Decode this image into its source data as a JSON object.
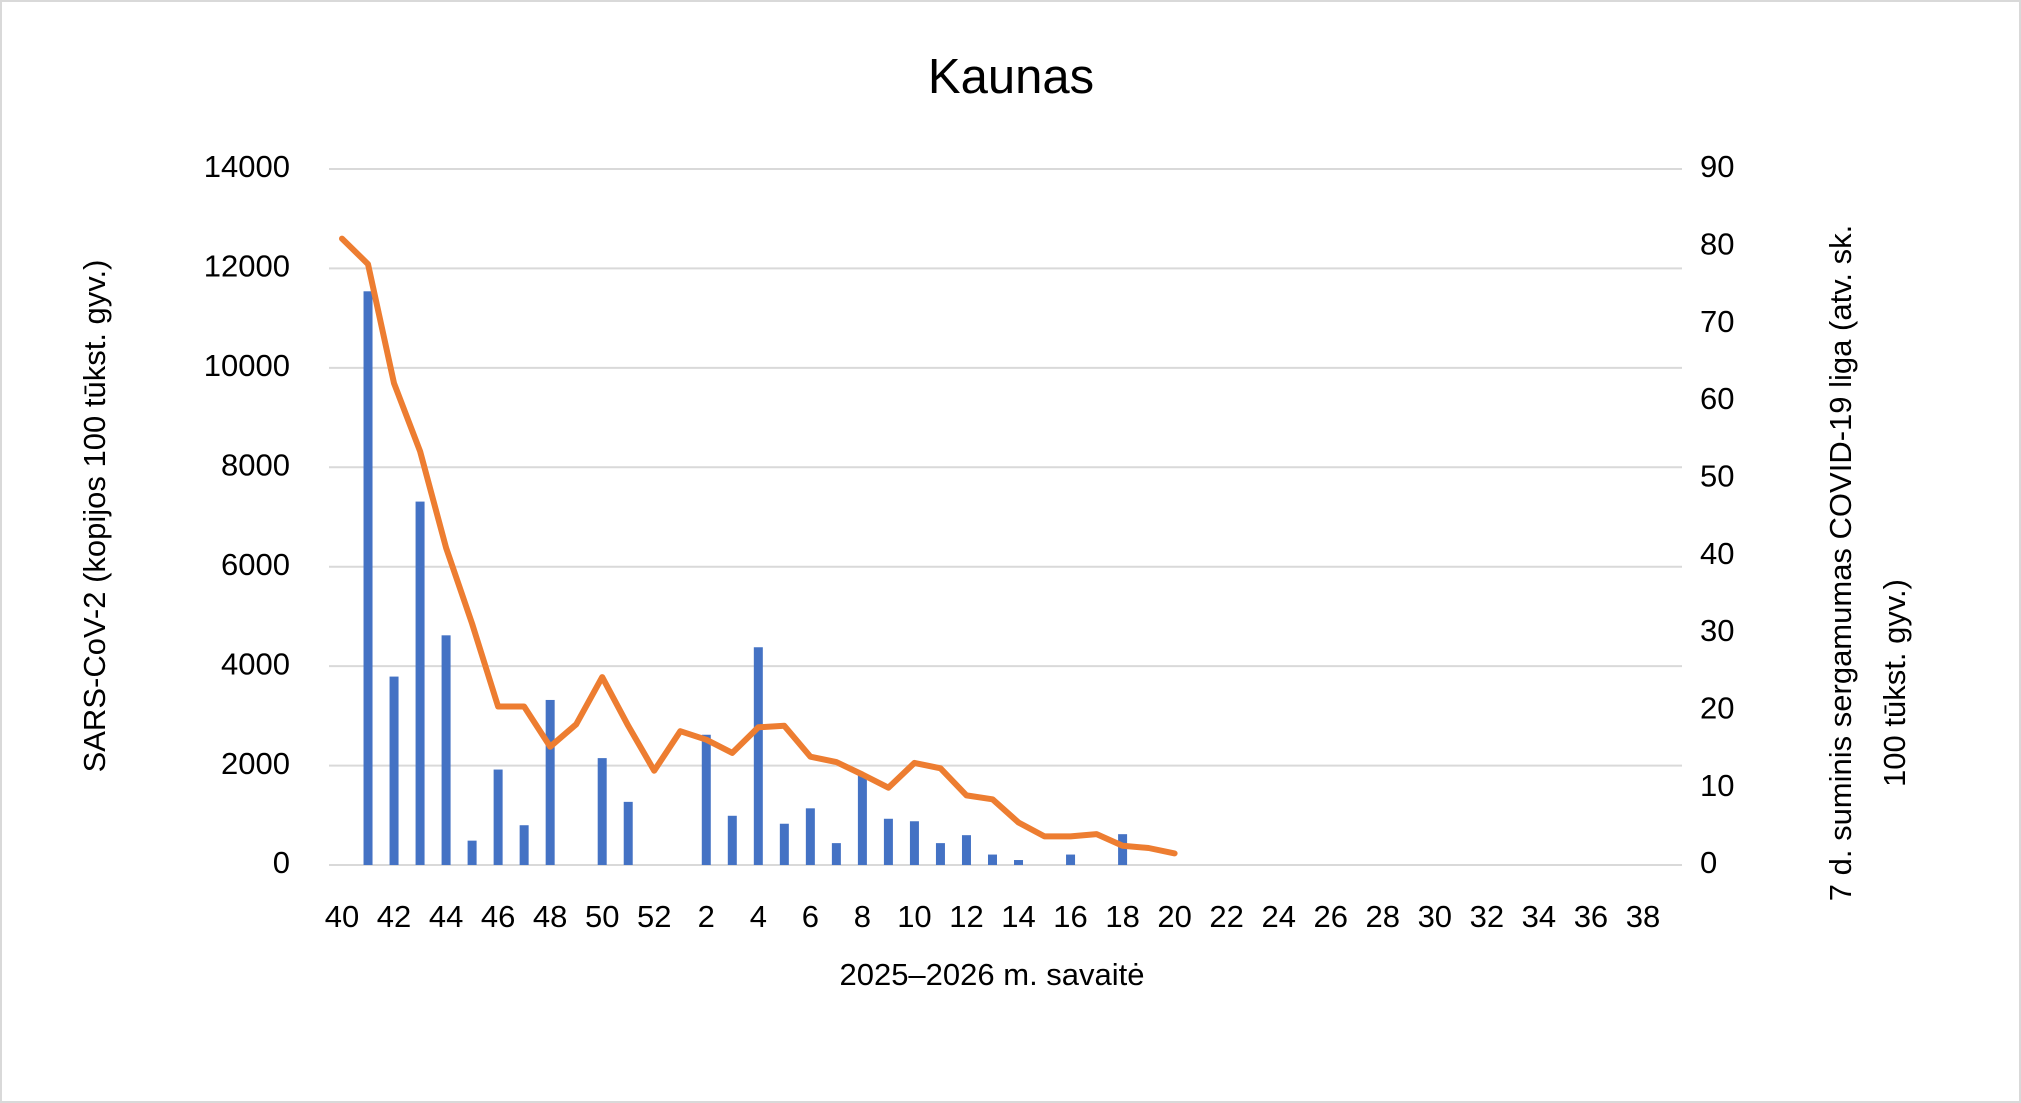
{
  "chart_data": {
    "type": "combo",
    "title": "Kaunas",
    "x_label": "2025–2026 m. savaitė",
    "y_label": "SARS-CoV-2  (kopijos 100 tūkst. gyv.)",
    "y2_label": [
      "7 d. suminis sergamumas COVID-19 liga (atv. sk.",
      "100 tūkst. gyv.)"
    ],
    "categories": [
      "40",
      null,
      "42",
      null,
      "44",
      null,
      "46",
      null,
      "48",
      null,
      "50",
      null,
      "52",
      null,
      "2",
      null,
      "4",
      null,
      "6",
      null,
      "8",
      null,
      "10",
      null,
      "12",
      null,
      "14",
      null,
      "16",
      null,
      "18",
      null,
      "20",
      null,
      "22",
      null,
      "24",
      null,
      "26",
      null,
      "28",
      null,
      "30",
      null,
      "32",
      null,
      "34",
      null,
      "36",
      null,
      "38",
      null
    ],
    "ylim": [
      0,
      14000
    ],
    "yticks": [
      0,
      2000,
      4000,
      6000,
      8000,
      10000,
      12000,
      14000
    ],
    "y2lim": [
      0,
      90
    ],
    "y2ticks": [
      0,
      10,
      20,
      30,
      40,
      50,
      60,
      70,
      80,
      90
    ],
    "grid": true,
    "series": [
      {
        "type": "bar",
        "color": "#4472c4",
        "values": [
          null,
          11540,
          3790,
          7310,
          4620,
          490,
          1920,
          800,
          3320,
          null,
          2150,
          1270,
          null,
          null,
          2620,
          990,
          4380,
          830,
          1140,
          440,
          1840,
          930,
          880,
          440,
          600,
          210,
          100,
          null,
          210,
          null,
          620,
          null,
          null,
          null,
          null,
          null,
          null,
          null,
          null,
          null,
          null,
          null,
          null,
          null,
          null,
          null,
          null,
          null,
          null,
          null,
          null,
          null
        ]
      },
      {
        "type": "line",
        "color": "#ed7d31",
        "axis": "y2",
        "values": [
          81,
          77.7,
          62.3,
          53.5,
          41,
          31.2,
          20.5,
          20.5,
          15.3,
          18.2,
          24.3,
          18,
          12.2,
          17.3,
          16.2,
          14.5,
          17.8,
          18,
          14,
          13.3,
          11.7,
          10,
          13.2,
          12.5,
          9,
          8.5,
          5.5,
          3.7,
          3.7,
          4,
          2.5,
          2.2,
          1.5,
          null,
          null,
          null,
          null,
          null,
          null,
          null,
          null,
          null,
          null,
          null,
          null,
          null,
          null,
          null,
          null,
          null,
          null,
          null
        ]
      }
    ]
  }
}
